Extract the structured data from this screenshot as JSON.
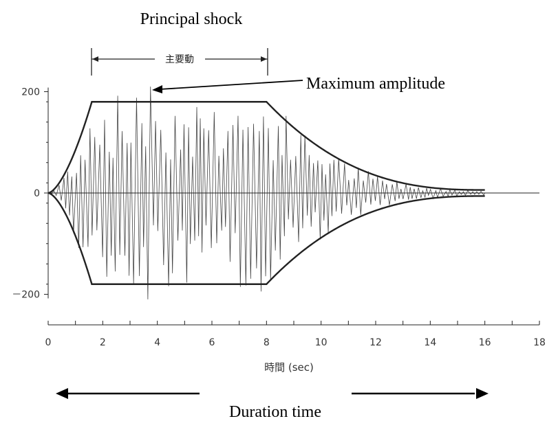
{
  "annotations": {
    "principal_shock_label": "Principal shock",
    "principal_bracket_label": "主要動",
    "max_amplitude_label": "Maximum amplitude",
    "duration_label": "Duration time"
  },
  "chart_data": {
    "type": "line",
    "title": "",
    "xlabel": "時間 (sec)",
    "ylabel": "",
    "xlim": [
      0,
      18
    ],
    "ylim": [
      -200,
      200
    ],
    "x_ticks": [
      0,
      2,
      4,
      6,
      8,
      10,
      12,
      14,
      16,
      18
    ],
    "y_ticks": [
      200,
      0,
      -200
    ],
    "y_tick_labels": [
      "200",
      "0",
      "－200"
    ],
    "principal_motion_interval": [
      1.6,
      8.0
    ],
    "maximum_amplitude_point": {
      "x": 3.7,
      "y": 210
    },
    "envelope": {
      "plateau": 180,
      "rise_start": 0,
      "rise_end": 1.6,
      "plateau_end": 8.0,
      "decay_end": 16,
      "end_amplitude": 6
    },
    "duration_interval": [
      0,
      16
    ]
  }
}
